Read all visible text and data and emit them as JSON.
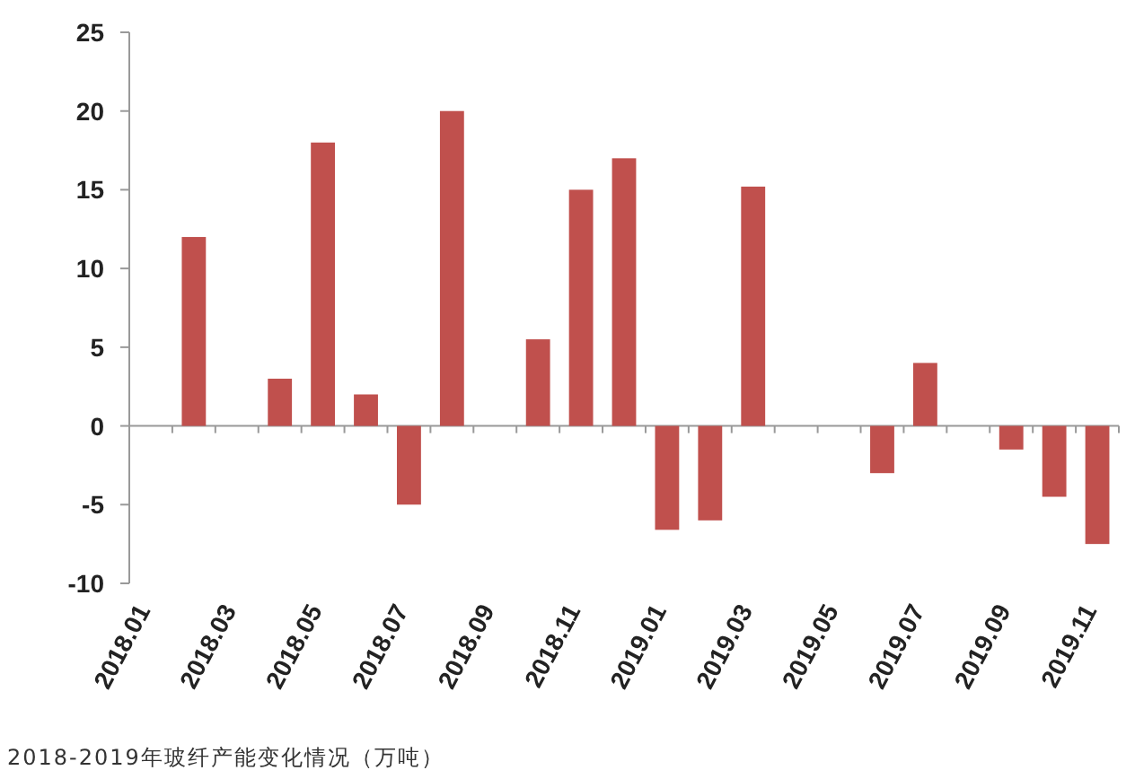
{
  "chart_data": {
    "type": "bar",
    "categories": [
      "2018.01",
      null,
      "2018.03",
      null,
      "2018.05",
      null,
      "2018.07",
      null,
      "2018.09",
      null,
      "2018.11",
      null,
      "2019.01",
      null,
      "2019.03",
      null,
      "2019.05",
      null,
      "2019.07",
      null,
      "2019.09",
      null,
      "2019.11"
    ],
    "values": [
      null,
      12,
      null,
      3,
      18,
      2,
      -5,
      20,
      null,
      5.5,
      15,
      17,
      -6.6,
      -6,
      15.2,
      null,
      null,
      -3,
      4,
      null,
      -1.5,
      -4.5,
      -7.5
    ],
    "color": "#c0504d",
    "ylim": [
      -10,
      25
    ],
    "yticks": [
      -10,
      -5,
      0,
      5,
      10,
      15,
      20,
      25
    ],
    "annotations": [
      "2018-2019年玻纤产能变化情况（万吨）"
    ]
  }
}
